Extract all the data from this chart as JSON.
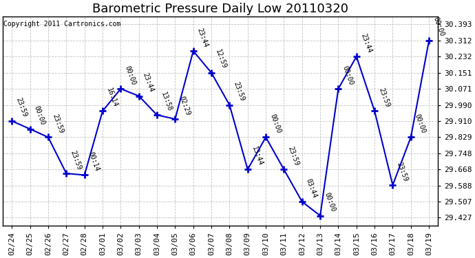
{
  "title": "Barometric Pressure Daily Low 20110320",
  "copyright": "Copyright 2011 Cartronics.com",
  "dates": [
    "02/24",
    "02/25",
    "02/26",
    "02/27",
    "02/28",
    "03/01",
    "03/02",
    "03/03",
    "03/04",
    "03/05",
    "03/06",
    "03/07",
    "03/08",
    "03/09",
    "03/10",
    "03/11",
    "03/12",
    "03/13",
    "03/14",
    "03/15",
    "03/16",
    "03/17",
    "03/18",
    "03/19"
  ],
  "values": [
    29.91,
    29.87,
    29.829,
    29.648,
    29.64,
    29.96,
    30.071,
    30.035,
    29.94,
    29.92,
    30.26,
    30.151,
    29.99,
    29.668,
    29.829,
    29.668,
    29.507,
    29.437,
    30.071,
    30.232,
    29.96,
    29.59,
    29.829,
    30.312
  ],
  "labels": [
    "23:59",
    "00:00",
    "23:59",
    "23:59",
    "00:14",
    "16:14",
    "00:00",
    "23:44",
    "13:58",
    "02:29",
    "23:44",
    "12:59",
    "23:59",
    "13:44",
    "00:00",
    "23:59",
    "03:44",
    "00:00",
    "00:00",
    "23:44",
    "23:59",
    "23:59",
    "00:00",
    "00:00"
  ],
  "yticks": [
    29.427,
    29.507,
    29.588,
    29.668,
    29.748,
    29.829,
    29.91,
    29.99,
    30.071,
    30.151,
    30.232,
    30.312,
    30.393
  ],
  "ylim": [
    29.387,
    30.433
  ],
  "line_color": "#0000cc",
  "marker_color": "#0000cc",
  "grid_color": "#bbbbbb",
  "bg_color": "#ffffff",
  "title_fontsize": 13,
  "label_fontsize": 7,
  "copyright_fontsize": 7,
  "tick_fontsize": 8
}
